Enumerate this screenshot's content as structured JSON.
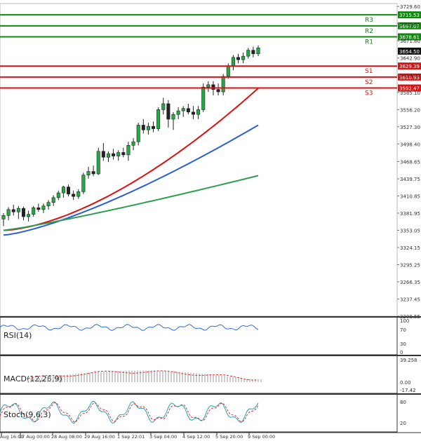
{
  "chart_data": {
    "type": "candlestick",
    "price_axis_ticks": [
      "3729.60",
      "3700.65",
      "3671.80",
      "3642.90",
      "3614.00",
      "3585.10",
      "3556.20",
      "3527.30",
      "3498.40",
      "3468.65",
      "3439.75",
      "3410.85",
      "3381.95",
      "3353.05",
      "3324.15",
      "3295.25",
      "3266.35",
      "3237.45",
      "3208.55"
    ],
    "x_ticks": [
      "Aug 16:00",
      "27 Aug 00:00",
      "28 Aug 08:00",
      "29 Aug 16:00",
      "1 Sep 22:01",
      "3 Sep 04:00",
      "4 Sep 12:00",
      "5 Sep 20:00",
      "9 Sep 00:00"
    ],
    "current_price": 3654.5,
    "resistance": [
      {
        "label": "R3",
        "value": 3715.53,
        "color": "#118811"
      },
      {
        "label": "R2",
        "value": 3697.07,
        "color": "#118811"
      },
      {
        "label": "R1",
        "value": 3678.61,
        "color": "#118811"
      }
    ],
    "support": [
      {
        "label": "S1",
        "value": 3629.39,
        "color": "#dd1111"
      },
      {
        "label": "S2",
        "value": 3610.93,
        "color": "#dd1111"
      },
      {
        "label": "S3",
        "value": 3592.47,
        "color": "#dd1111"
      }
    ],
    "candles": [
      {
        "o": 3372,
        "h": 3382,
        "l": 3360,
        "c": 3378
      },
      {
        "o": 3378,
        "h": 3392,
        "l": 3370,
        "c": 3388
      },
      {
        "o": 3388,
        "h": 3396,
        "l": 3378,
        "c": 3384
      },
      {
        "o": 3384,
        "h": 3394,
        "l": 3372,
        "c": 3390
      },
      {
        "o": 3390,
        "h": 3393,
        "l": 3370,
        "c": 3376
      },
      {
        "o": 3376,
        "h": 3386,
        "l": 3368,
        "c": 3380
      },
      {
        "o": 3380,
        "h": 3394,
        "l": 3376,
        "c": 3391
      },
      {
        "o": 3391,
        "h": 3398,
        "l": 3384,
        "c": 3388
      },
      {
        "o": 3388,
        "h": 3398,
        "l": 3382,
        "c": 3394
      },
      {
        "o": 3394,
        "h": 3404,
        "l": 3388,
        "c": 3400
      },
      {
        "o": 3400,
        "h": 3412,
        "l": 3394,
        "c": 3408
      },
      {
        "o": 3408,
        "h": 3420,
        "l": 3404,
        "c": 3416
      },
      {
        "o": 3416,
        "h": 3428,
        "l": 3408,
        "c": 3426
      },
      {
        "o": 3426,
        "h": 3430,
        "l": 3410,
        "c": 3414
      },
      {
        "o": 3414,
        "h": 3420,
        "l": 3404,
        "c": 3410
      },
      {
        "o": 3410,
        "h": 3422,
        "l": 3406,
        "c": 3418
      },
      {
        "o": 3418,
        "h": 3450,
        "l": 3414,
        "c": 3446
      },
      {
        "o": 3446,
        "h": 3460,
        "l": 3440,
        "c": 3452
      },
      {
        "o": 3452,
        "h": 3462,
        "l": 3444,
        "c": 3448
      },
      {
        "o": 3448,
        "h": 3492,
        "l": 3446,
        "c": 3486
      },
      {
        "o": 3486,
        "h": 3500,
        "l": 3470,
        "c": 3476
      },
      {
        "o": 3476,
        "h": 3486,
        "l": 3468,
        "c": 3482
      },
      {
        "o": 3482,
        "h": 3490,
        "l": 3472,
        "c": 3478
      },
      {
        "o": 3478,
        "h": 3488,
        "l": 3470,
        "c": 3484
      },
      {
        "o": 3484,
        "h": 3492,
        "l": 3476,
        "c": 3480
      },
      {
        "o": 3480,
        "h": 3502,
        "l": 3470,
        "c": 3496
      },
      {
        "o": 3496,
        "h": 3508,
        "l": 3488,
        "c": 3502
      },
      {
        "o": 3502,
        "h": 3534,
        "l": 3496,
        "c": 3530
      },
      {
        "o": 3530,
        "h": 3540,
        "l": 3516,
        "c": 3522
      },
      {
        "o": 3522,
        "h": 3534,
        "l": 3514,
        "c": 3528
      },
      {
        "o": 3528,
        "h": 3536,
        "l": 3518,
        "c": 3524
      },
      {
        "o": 3524,
        "h": 3560,
        "l": 3520,
        "c": 3556
      },
      {
        "o": 3556,
        "h": 3576,
        "l": 3548,
        "c": 3566
      },
      {
        "o": 3566,
        "h": 3572,
        "l": 3526,
        "c": 3540
      },
      {
        "o": 3540,
        "h": 3552,
        "l": 3522,
        "c": 3548
      },
      {
        "o": 3548,
        "h": 3560,
        "l": 3540,
        "c": 3554
      },
      {
        "o": 3554,
        "h": 3562,
        "l": 3544,
        "c": 3558
      },
      {
        "o": 3558,
        "h": 3566,
        "l": 3548,
        "c": 3552
      },
      {
        "o": 3552,
        "h": 3562,
        "l": 3540,
        "c": 3548
      },
      {
        "o": 3548,
        "h": 3562,
        "l": 3540,
        "c": 3556
      },
      {
        "o": 3556,
        "h": 3600,
        "l": 3552,
        "c": 3594
      },
      {
        "o": 3594,
        "h": 3604,
        "l": 3586,
        "c": 3598
      },
      {
        "o": 3598,
        "h": 3604,
        "l": 3580,
        "c": 3590
      },
      {
        "o": 3590,
        "h": 3600,
        "l": 3580,
        "c": 3586
      },
      {
        "o": 3586,
        "h": 3616,
        "l": 3580,
        "c": 3612
      },
      {
        "o": 3612,
        "h": 3634,
        "l": 3608,
        "c": 3630
      },
      {
        "o": 3630,
        "h": 3648,
        "l": 3622,
        "c": 3644
      },
      {
        "o": 3644,
        "h": 3650,
        "l": 3634,
        "c": 3640
      },
      {
        "o": 3640,
        "h": 3652,
        "l": 3634,
        "c": 3646
      },
      {
        "o": 3646,
        "h": 3660,
        "l": 3642,
        "c": 3656
      },
      {
        "o": 3656,
        "h": 3662,
        "l": 3644,
        "c": 3650
      },
      {
        "o": 3650,
        "h": 3664,
        "l": 3646,
        "c": 3660
      }
    ],
    "moving_averages": [
      {
        "color": "#e01010",
        "start": 3353,
        "end": 3592
      },
      {
        "color": "#2a5ed8",
        "start": 3345,
        "end": 3530
      },
      {
        "color": "#2e9e4e",
        "start": 3353,
        "end": 3445
      }
    ],
    "indicators": [
      {
        "name": "RSI(14)",
        "ticks": [
          "100",
          "70",
          "30",
          "0"
        ]
      },
      {
        "name": "MACD(12,26,9)",
        "ticks": [
          "39.258",
          "0.00",
          "-17.42"
        ]
      },
      {
        "name": "Stoch(9,6,3)",
        "ticks": [
          "80",
          "20"
        ]
      }
    ]
  }
}
